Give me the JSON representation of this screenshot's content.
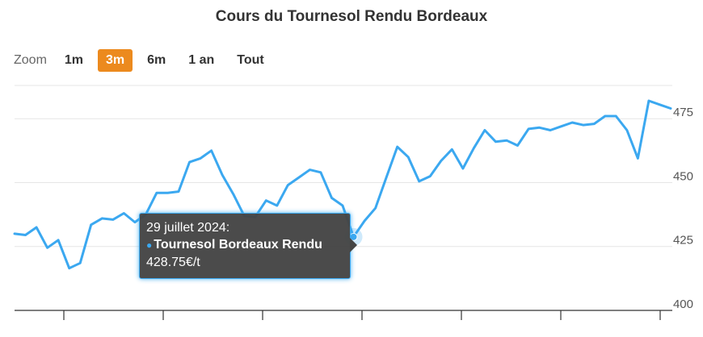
{
  "chart_data": {
    "type": "line",
    "title": "Cours du Tournesol Rendu Bordeaux",
    "series": [
      {
        "name": "Tournesol Bordeaux Rendu",
        "color": "#3ba8f0",
        "values": [
          430,
          429.5,
          432.5,
          424.5,
          427.5,
          416.5,
          418.5,
          433.5,
          436,
          435.5,
          438,
          434.5,
          437.5,
          446,
          446,
          446.5,
          458,
          459.5,
          462.5,
          453,
          445.5,
          437,
          436.5,
          443,
          441,
          449,
          452,
          455,
          454,
          444,
          441,
          428.75,
          435,
          440,
          452,
          464,
          460,
          450.5,
          452.5,
          458.5,
          463,
          455.5,
          463.5,
          470.5,
          466,
          466.5,
          464.5,
          471,
          471.5,
          470.5,
          472,
          473.5,
          472.5,
          473,
          476,
          476,
          470.5,
          459.5,
          482,
          480.5,
          479
        ]
      }
    ],
    "ylim": [
      400,
      488
    ],
    "y_ticks": [
      "400",
      "425",
      "450",
      "475"
    ],
    "x_tick_count": 7,
    "grid": true
  },
  "zoom": {
    "label": "Zoom",
    "buttons": [
      "1m",
      "3m",
      "6m",
      "1 an",
      "Tout"
    ],
    "selected": "3m"
  },
  "tooltip": {
    "date": "29 juillet 2024:",
    "series_name": "Tournesol Bordeaux Rendu",
    "value": "428.75€/t",
    "point_index": 31
  }
}
